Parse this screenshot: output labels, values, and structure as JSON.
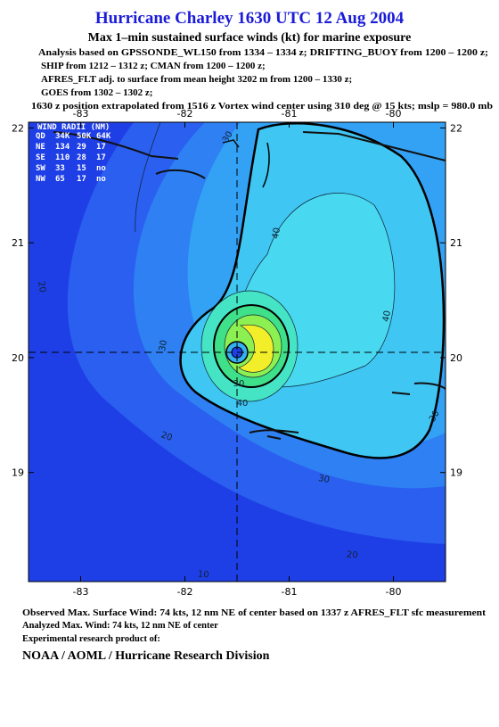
{
  "header": {
    "title": "Hurricane Charley 1630 UTC 12 Aug 2004",
    "subtitle": "Max 1–min sustained surface winds (kt) for marine exposure",
    "lines": [
      "Analysis based on  GPSSONDE_WL150 from 1334 – 1334 z;  DRIFTING_BUOY from 1200 – 1200 z;",
      "SHIP from 1212 – 1312 z;  CMAN from 1200 – 1200 z;",
      "AFRES_FLT adj. to surface from mean height 3202 m from 1200 – 1330 z;",
      "GOES from 1302 – 1302 z;",
      "1630 z position extrapolated from 1516 z Vortex wind center using 310 deg @ 15 kts; mslp = 980.0 mb"
    ]
  },
  "map": {
    "xlim": [
      -83.5,
      -79.5
    ],
    "ylim": [
      18.05,
      22.05
    ],
    "xticks": [
      -83,
      -82,
      -81,
      -80
    ],
    "yticks": [
      22,
      21,
      20,
      19
    ],
    "wind_radii": {
      "title": "WIND RADII (NM)",
      "columns": [
        "QD",
        "34K",
        "50K",
        "64K"
      ],
      "rows": [
        [
          "NE",
          134,
          29,
          17
        ],
        [
          "SE",
          110,
          28,
          17
        ],
        [
          "SW",
          33,
          15,
          "no"
        ],
        [
          "NW",
          65,
          17,
          "no"
        ]
      ]
    },
    "contour_labels": [
      30,
      40,
      40,
      30,
      20,
      30,
      30,
      20,
      20,
      10,
      40,
      30
    ]
  },
  "footer": {
    "lines": [
      "Observed Max. Surface Wind: 74 kts, 12 nm NE of center based on 1337 z AFRES_FLT sfc measurement",
      "Analyzed Max. Wind: 74 kts, 12 nm NE of center",
      "Experimental research product of:"
    ],
    "credit": "NOAA / AOML / Hurricane Research Division"
  }
}
